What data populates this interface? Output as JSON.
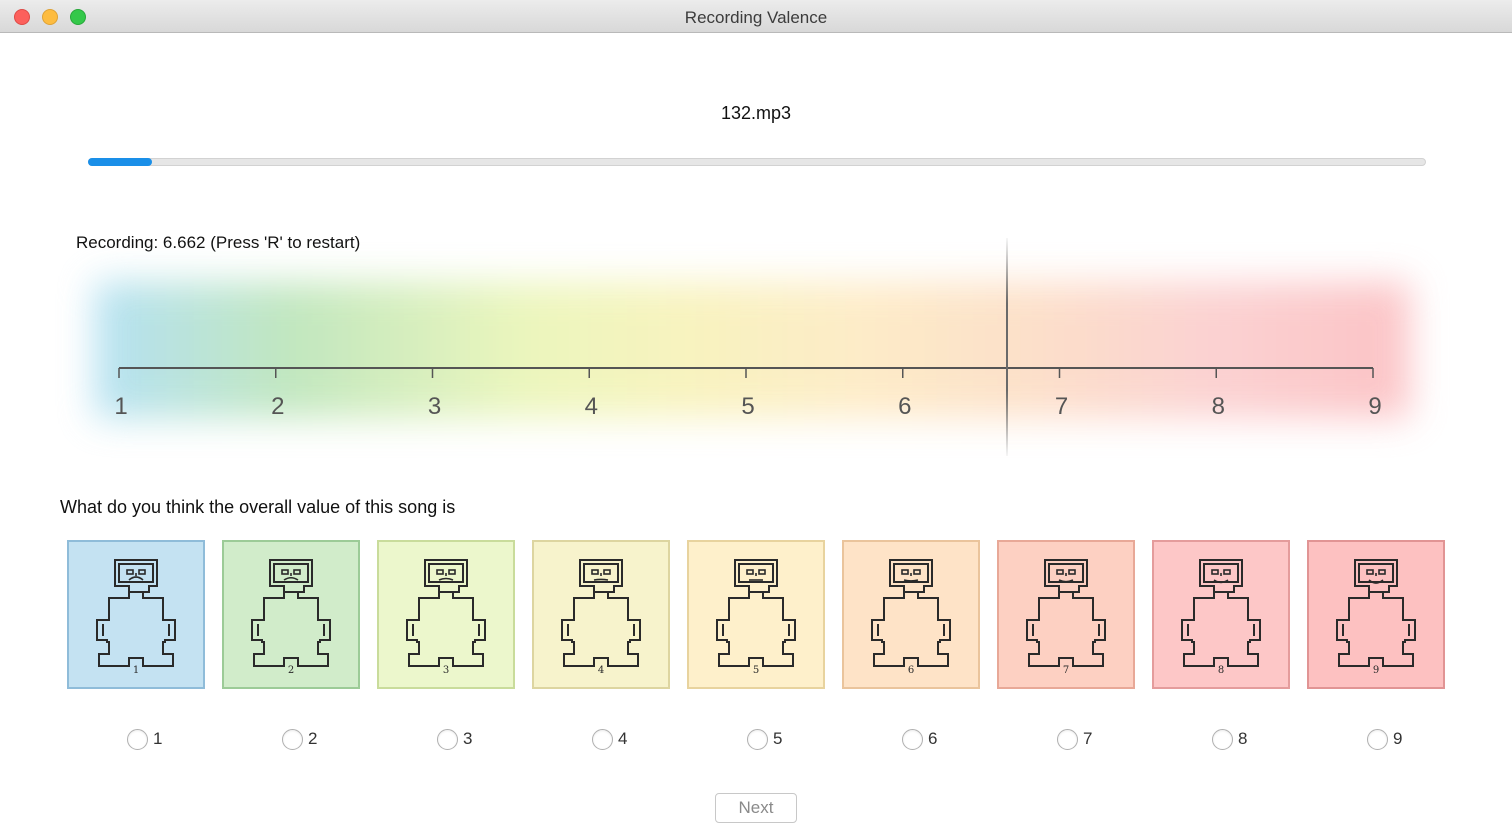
{
  "window": {
    "title": "Recording Valence"
  },
  "player": {
    "filename": "132.mp3",
    "progress_fraction": 0.048,
    "progress_color": "#1a8fe8"
  },
  "recording": {
    "label": "Recording: 6.662 (Press 'R' to restart)",
    "current_value": 6.662
  },
  "scale": {
    "min": 1,
    "max": 9,
    "ticks": [
      "1",
      "2",
      "3",
      "4",
      "5",
      "6",
      "7",
      "8",
      "9"
    ]
  },
  "question": "What do you think the overall value of this song is",
  "sam": [
    {
      "label": "1",
      "fill": "#c4e2f2",
      "border": "#8fbcd9",
      "mouth": -1.0
    },
    {
      "label": "2",
      "fill": "#d1ecca",
      "border": "#9ccb97",
      "mouth": -0.75
    },
    {
      "label": "3",
      "fill": "#ecf7cc",
      "border": "#c9dc9b",
      "mouth": -0.5
    },
    {
      "label": "4",
      "fill": "#f7f3cc",
      "border": "#ddd5a0",
      "mouth": -0.2
    },
    {
      "label": "5",
      "fill": "#fef0cb",
      "border": "#e8d39e",
      "mouth": 0.0
    },
    {
      "label": "6",
      "fill": "#fee3c7",
      "border": "#eac49c",
      "mouth": 0.3
    },
    {
      "label": "7",
      "fill": "#fdd0c2",
      "border": "#e8a897",
      "mouth": 0.55
    },
    {
      "label": "8",
      "fill": "#fdc7c7",
      "border": "#e49c9c",
      "mouth": 0.8
    },
    {
      "label": "9",
      "fill": "#fdc1c1",
      "border": "#e19494",
      "mouth": 1.0
    }
  ],
  "options": [
    "1",
    "2",
    "3",
    "4",
    "5",
    "6",
    "7",
    "8",
    "9"
  ],
  "next_button": "Next"
}
